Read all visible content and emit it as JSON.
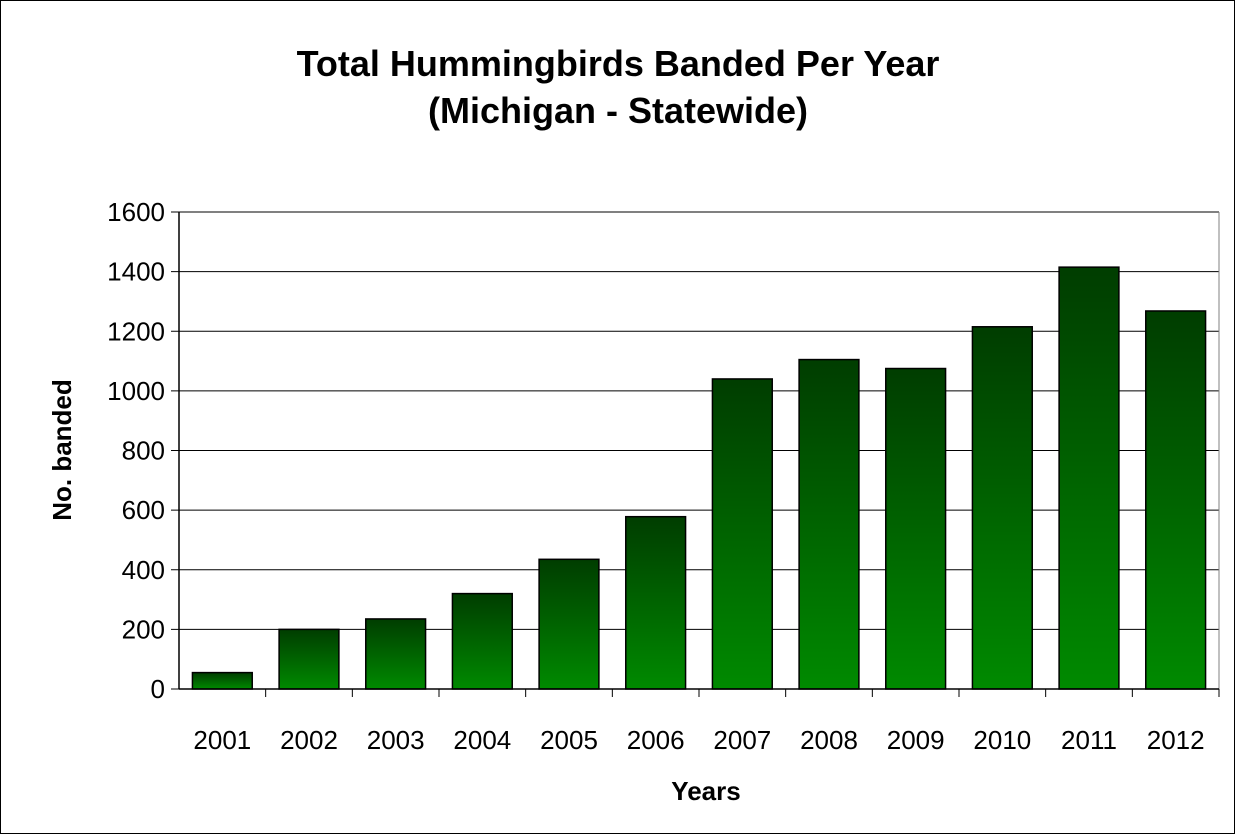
{
  "chart_data": {
    "type": "bar",
    "title": [
      "Total Hummingbirds Banded Per Year",
      "(Michigan - Statewide)"
    ],
    "xlabel": "Years",
    "ylabel": "No. banded",
    "categories": [
      "2001",
      "2002",
      "2003",
      "2004",
      "2005",
      "2006",
      "2007",
      "2008",
      "2009",
      "2010",
      "2011",
      "2012"
    ],
    "values": [
      55,
      200,
      235,
      320,
      435,
      578,
      1040,
      1105,
      1075,
      1215,
      1415,
      1268
    ],
    "ylim": [
      0,
      1600
    ],
    "yticks": [
      0,
      200,
      400,
      600,
      800,
      1000,
      1200,
      1400,
      1600
    ],
    "grid": true,
    "legend": "none",
    "colors": {
      "bar_top": "#003d00",
      "bar_bottom": "#008a00",
      "bar_edge": "#000000",
      "grid": "#000000"
    }
  }
}
